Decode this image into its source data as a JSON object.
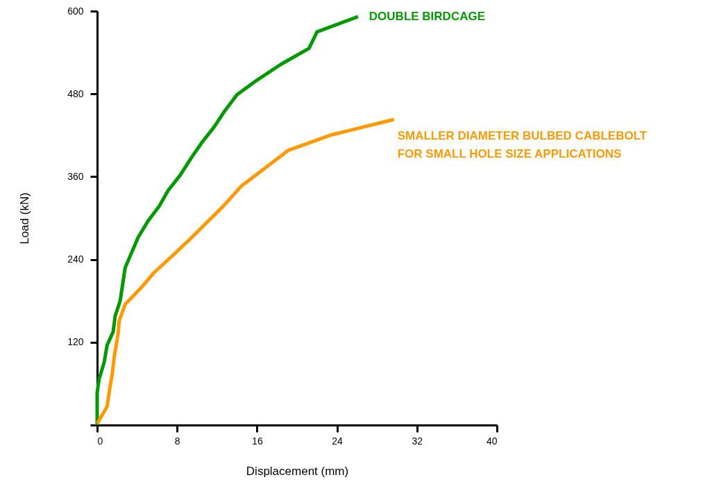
{
  "chart_data": {
    "type": "line",
    "xlabel": "Displacement (mm)",
    "ylabel": "Load (kN)",
    "xlim": [
      0,
      40
    ],
    "xticks": [
      0,
      8,
      16,
      24,
      32,
      40
    ],
    "ylim": [
      0,
      600
    ],
    "yticks": [
      {
        "value": 0,
        "label": null
      },
      120,
      240,
      360,
      480,
      600
    ],
    "grid": false,
    "marker": "none",
    "line_style": "solid",
    "series": [
      {
        "name": "DOUBLE BIRDCAGE",
        "color": "#009900",
        "x": [
          0,
          0,
          0.2,
          0.7,
          1.0,
          1.6,
          1.8,
          2.3,
          2.8,
          4.1,
          5.1,
          6.2,
          7.1,
          8.3,
          9.4,
          10.5,
          11.7,
          12.7,
          14.0,
          16.0,
          18.4,
          21.2,
          22.0,
          26.1
        ],
        "values": [
          0,
          47,
          67,
          91,
          116,
          135,
          158,
          180,
          228,
          272,
          296,
          317,
          340,
          362,
          387,
          410,
          432,
          454,
          479,
          500,
          523,
          546,
          570,
          592
        ]
      },
      {
        "name": "SMALLER DIAMETER BULBED CABLEBOLT\nFOR SMALL HOLE SIZE APPLICATIONS",
        "color": "#ff9900",
        "x": [
          0,
          1.0,
          1.25,
          1.5,
          1.7,
          2.1,
          2.2,
          2.8,
          4.4,
          5.7,
          7.8,
          9.4,
          12.6,
          14.4,
          19.1,
          23.3,
          29.7
        ],
        "values": [
          2,
          27,
          52,
          73,
          98,
          133,
          151,
          175,
          199,
          221,
          249,
          271,
          317,
          346,
          398,
          420,
          443
        ]
      }
    ]
  }
}
